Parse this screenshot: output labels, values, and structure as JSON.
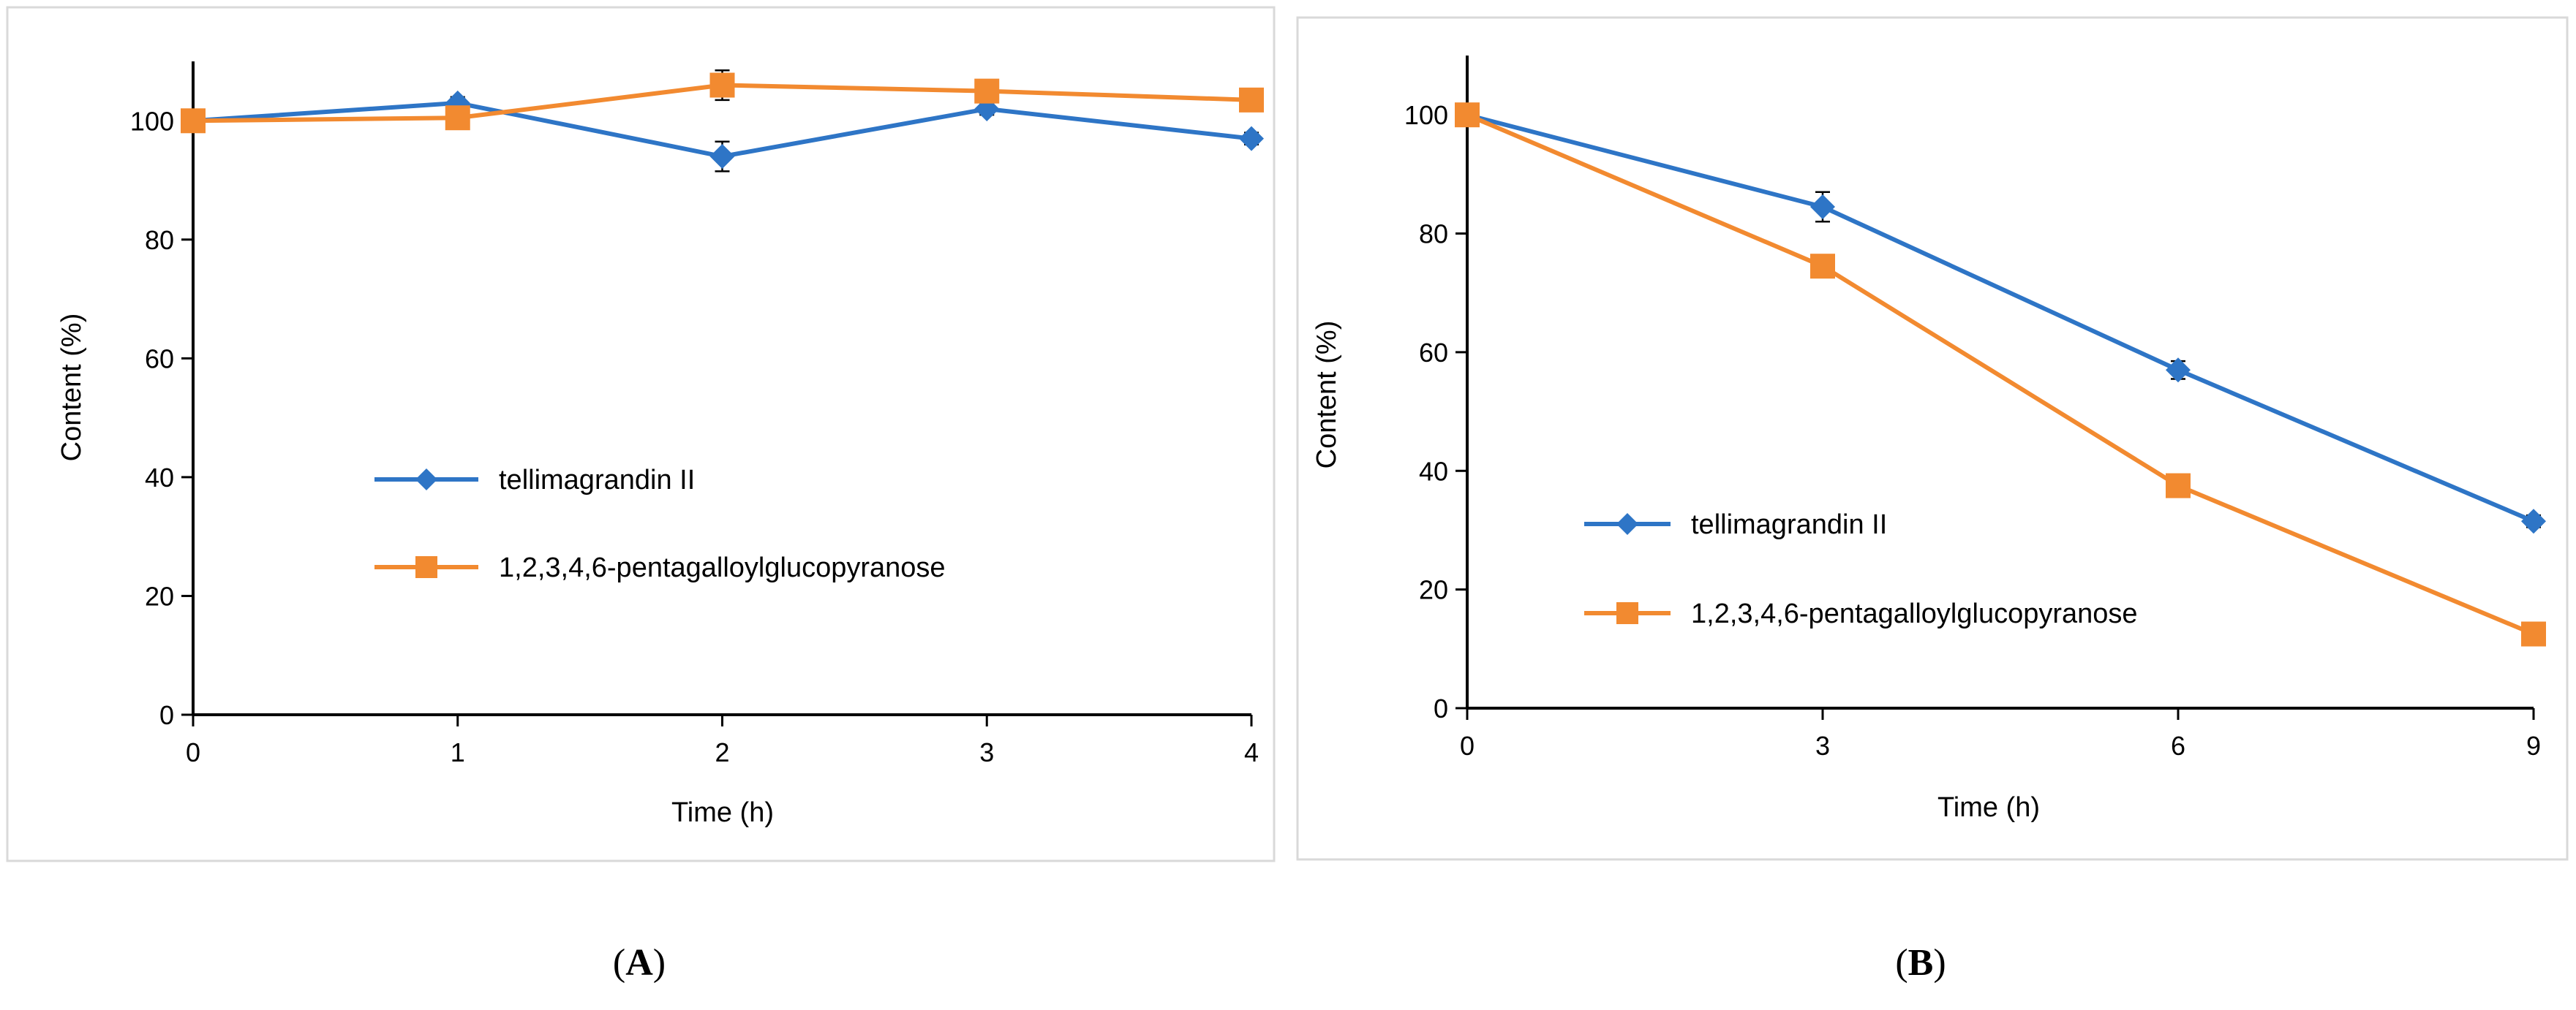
{
  "chart_data": [
    {
      "type": "line",
      "panel_label": "A",
      "title": "",
      "xlabel": "Time (h)",
      "ylabel": "Content (%)",
      "x": [
        0,
        1,
        2,
        3,
        4
      ],
      "x_ticks": [
        "0",
        "1",
        "2",
        "3",
        "4"
      ],
      "xlim": [
        0,
        4
      ],
      "y_ticks": [
        "0",
        "20",
        "40",
        "60",
        "80",
        "100"
      ],
      "ylim": [
        0,
        110
      ],
      "grid": false,
      "legend_position": "center-left",
      "series": [
        {
          "name": "tellimagrandin II",
          "color": "#2e75c6",
          "marker": "diamond",
          "values": [
            100,
            103,
            94,
            102,
            97
          ],
          "errors": [
            0.5,
            1.0,
            2.5,
            1.0,
            1.0
          ]
        },
        {
          "name": "1,2,3,4,6-pentagalloylglucopyranose",
          "color": "#f28a30",
          "marker": "square",
          "values": [
            100,
            100.5,
            106,
            105,
            103.5
          ],
          "errors": [
            0.5,
            1.0,
            2.5,
            1.0,
            1.0
          ]
        }
      ]
    },
    {
      "type": "line",
      "panel_label": "B",
      "title": "",
      "xlabel": "Time (h)",
      "ylabel": "Content (%)",
      "x": [
        0,
        3,
        6,
        9
      ],
      "x_ticks": [
        "0",
        "3",
        "6",
        "9"
      ],
      "xlim": [
        0,
        9
      ],
      "y_ticks": [
        "0",
        "20",
        "40",
        "60",
        "80",
        "100"
      ],
      "ylim": [
        0,
        110
      ],
      "grid": false,
      "legend_position": "bottom-left",
      "series": [
        {
          "name": "tellimagrandin II",
          "color": "#2e75c6",
          "marker": "diamond",
          "values": [
            100,
            84.5,
            57,
            31.5
          ],
          "errors": [
            0.5,
            2.5,
            1.5,
            1.0
          ]
        },
        {
          "name": "1,2,3,4,6-pentagalloylglucopyranose",
          "color": "#f28a30",
          "marker": "square",
          "values": [
            100,
            74.5,
            37.5,
            12.5
          ],
          "errors": [
            0.5,
            1.5,
            1.0,
            1.0
          ]
        }
      ]
    }
  ]
}
